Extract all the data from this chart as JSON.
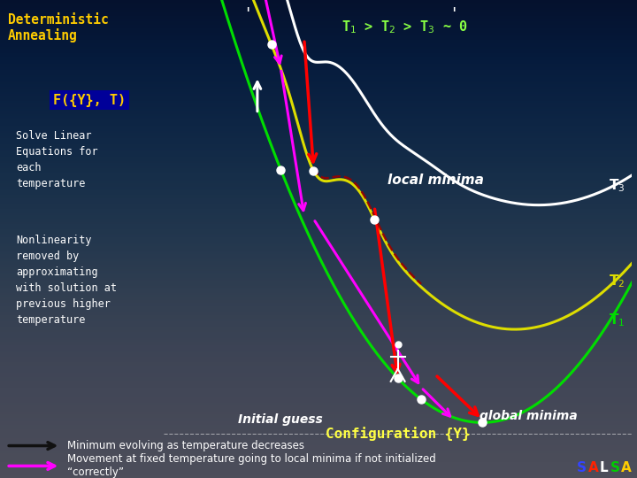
{
  "bg_color": "#1a1a3a",
  "bg_gradient_top": "#0a0a2a",
  "bg_gradient_bot": "#2a3060",
  "left_bg": "#050515",
  "chart_bg": "#000030",
  "title_text": "Deterministic\nAnnealing",
  "title_color": "#ffcc00",
  "fyt_label": "F({Y}, T)",
  "fyt_bg": "#000099",
  "fyt_color": "#ffcc00",
  "text1": "Solve Linear\nEquations for\neach\ntemperature",
  "text2": "Nonlinearity\nremoved by\napproximating\nwith solution at\nprevious higher\ntemperature",
  "text_color": "#ffffff",
  "temp_eq_color": "#88ff44",
  "config_label": "Configuration {Y}",
  "config_color": "#ffff44",
  "config_bg": "#000088",
  "legend1": "Minimum evolving as temperature decreases",
  "legend2": "Movement at fixed temperature going to local minima if not initialized\n“correctly”",
  "T1_color": "#00dd00",
  "T2_color": "#dddd00",
  "T3_color": "#ffffff",
  "salsa_colors": [
    "#3344ff",
    "#ff2200",
    "#ffffff",
    "#00cc00",
    "#ffcc00"
  ]
}
